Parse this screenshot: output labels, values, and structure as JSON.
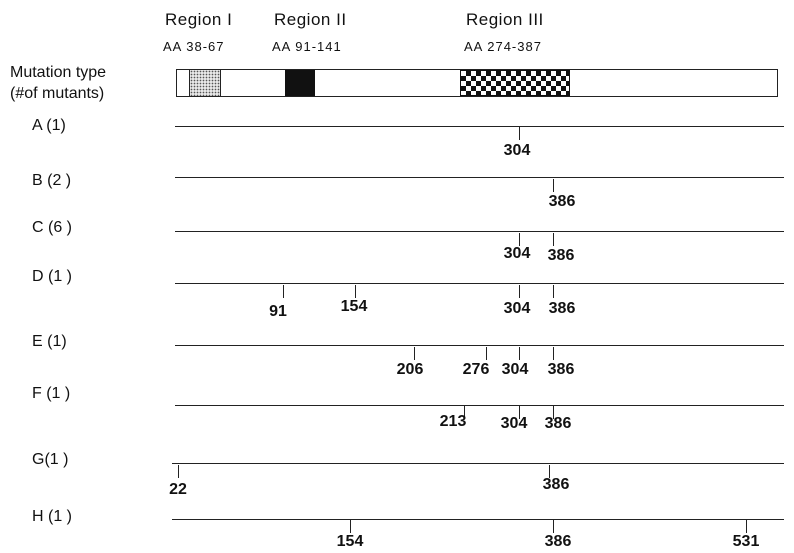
{
  "regions": [
    {
      "title": "Region I",
      "range": "AA  38-67"
    },
    {
      "title": "Region II",
      "range": "AA  91-141"
    },
    {
      "title": "Region III",
      "range": "AA  274-387"
    }
  ],
  "header": {
    "line1": "Mutation type",
    "line2": "(#of mutants)"
  },
  "rows": [
    {
      "label": "A (1)",
      "positions": [
        "304"
      ]
    },
    {
      "label": "B (2 )",
      "positions": [
        "386"
      ]
    },
    {
      "label": "C (6 )",
      "positions": [
        "304",
        "386"
      ]
    },
    {
      "label": "D (1 )",
      "positions": [
        "91",
        "154",
        "304",
        "386"
      ]
    },
    {
      "label": "E (1)",
      "positions": [
        "206",
        "276",
        "304",
        "386"
      ]
    },
    {
      "label": "F (1 )",
      "positions": [
        "213",
        "304",
        "386"
      ]
    },
    {
      "label": "G(1 )",
      "positions": [
        "22",
        "386"
      ]
    },
    {
      "label": "H (1 )",
      "positions": [
        "154",
        "386",
        "531"
      ]
    }
  ]
}
